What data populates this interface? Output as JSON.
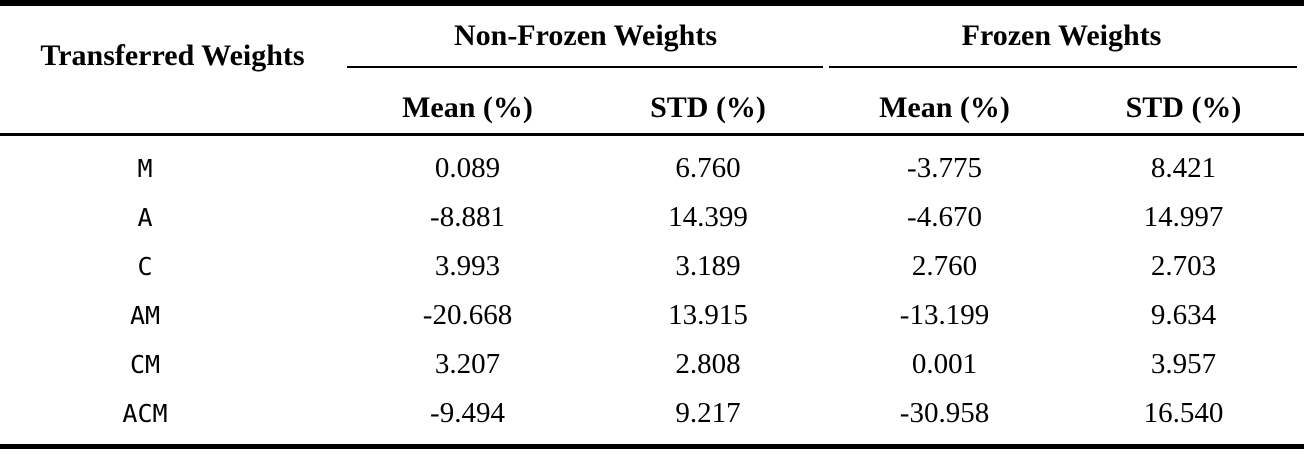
{
  "table": {
    "corner_header": "Transferred Weights",
    "groups": [
      {
        "label": "Non-Frozen Weights",
        "subcols": [
          "Mean (%)",
          "STD (%)"
        ]
      },
      {
        "label": "Frozen Weights",
        "subcols": [
          "Mean (%)",
          "STD (%)"
        ]
      }
    ],
    "rows": [
      {
        "label": "M",
        "values": [
          "0.089",
          "6.760",
          "-3.775",
          "8.421"
        ]
      },
      {
        "label": "A",
        "values": [
          "-8.881",
          "14.399",
          "-4.670",
          "14.997"
        ]
      },
      {
        "label": "C",
        "values": [
          "3.993",
          "3.189",
          "2.760",
          "2.703"
        ]
      },
      {
        "label": "AM",
        "values": [
          "-20.668",
          "13.915",
          "-13.199",
          "9.634"
        ]
      },
      {
        "label": "CM",
        "values": [
          "3.207",
          "2.808",
          "0.001",
          "3.957"
        ]
      },
      {
        "label": "ACM",
        "values": [
          "-9.494",
          "9.217",
          "-30.958",
          "16.540"
        ]
      }
    ],
    "colors": {
      "text": "#000000",
      "background": "#ffffff",
      "rule": "#000000"
    }
  }
}
